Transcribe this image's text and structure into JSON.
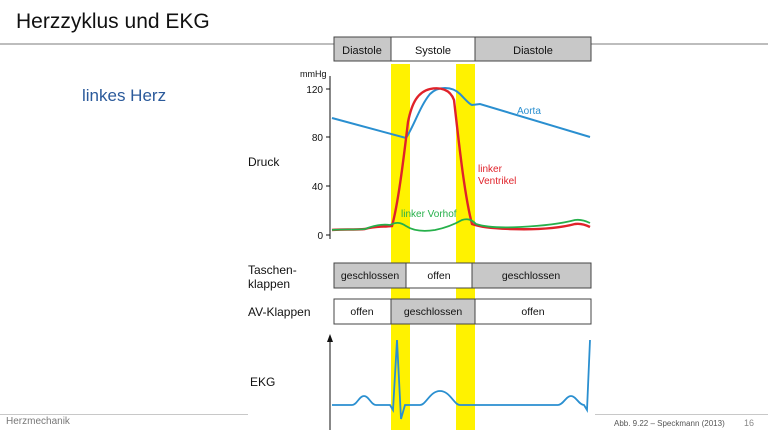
{
  "slide": {
    "title": "Herzzyklus und EKG",
    "subtitle": "linkes Herz",
    "footer_left": "Herzmechanik",
    "source": "Abb. 9.22 – Speckmann (2013)",
    "page_number": "16"
  },
  "phases": [
    "Diastole",
    "Systole",
    "Diastole"
  ],
  "pressure": {
    "row_label": "Druck",
    "unit": "mmHg",
    "ticks": [
      "120",
      "80",
      "40",
      "0"
    ],
    "curve_labels": {
      "aorta": "Aorta",
      "ventricle_1": "linker",
      "ventricle_2": "Ventrikel",
      "atrium": "linker Vorhof"
    }
  },
  "taschenklappen": {
    "label_1": "Taschen-",
    "label_2": "klappen",
    "states": [
      "geschlossen",
      "offen",
      "geschlossen"
    ]
  },
  "av_klappen": {
    "label": "AV-Klappen",
    "states": [
      "offen",
      "geschlossen",
      "offen"
    ]
  },
  "ekg": {
    "label": "EKG"
  },
  "colors": {
    "aorta": "#2a8fd0",
    "ventricle": "#e0222a",
    "atrium": "#26b04b",
    "highlight": "#fff200",
    "ekg": "#2a8fd0",
    "bar_gray": "#c8c8c8"
  }
}
